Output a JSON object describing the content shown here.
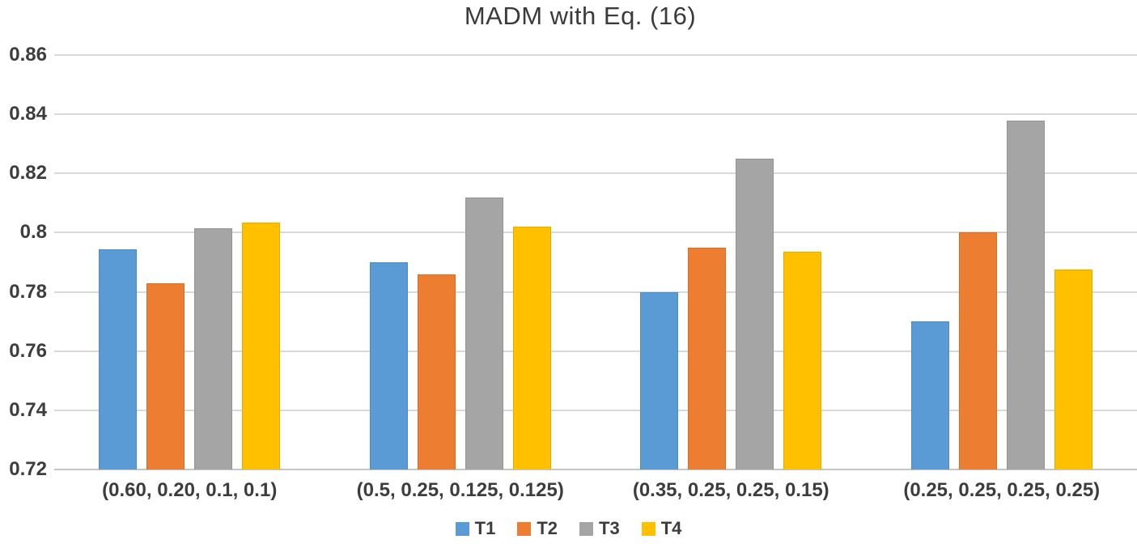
{
  "chart_data": {
    "type": "bar",
    "title": "MADM with Eq. (16)",
    "categories": [
      "(0.60, 0.20, 0.1, 0.1)",
      "(0.5, 0.25, 0.125, 0.125)",
      "(0.35, 0.25, 0.25, 0.15)",
      "(0.25, 0.25, 0.25, 0.25)"
    ],
    "series": [
      {
        "name": "T1",
        "color": "#5B9BD5",
        "values": [
          0.7945,
          0.79,
          0.78,
          0.77
        ]
      },
      {
        "name": "T2",
        "color": "#ED7D31",
        "values": [
          0.783,
          0.786,
          0.795,
          0.8
        ]
      },
      {
        "name": "T3",
        "color": "#A5A5A5",
        "values": [
          0.8015,
          0.812,
          0.825,
          0.838
        ]
      },
      {
        "name": "T4",
        "color": "#FFC000",
        "values": [
          0.8035,
          0.802,
          0.7935,
          0.7875
        ]
      }
    ],
    "ylim": [
      0.72,
      0.86
    ],
    "yticks": [
      0.86,
      0.84,
      0.82,
      0.8,
      0.78,
      0.76,
      0.74,
      0.72
    ],
    "ytick_labels": [
      "0.86",
      "0.84",
      "0.82",
      "0.8",
      "0.78",
      "0.76",
      "0.74",
      "0.72"
    ],
    "xlabel": "",
    "ylabel": "",
    "grid": true,
    "legend_position": "bottom",
    "colors": {
      "text": "#3d3d3d",
      "gridline": "#d9d9d9",
      "axis_line": "#c6c6c6",
      "background": "#ffffff"
    }
  }
}
